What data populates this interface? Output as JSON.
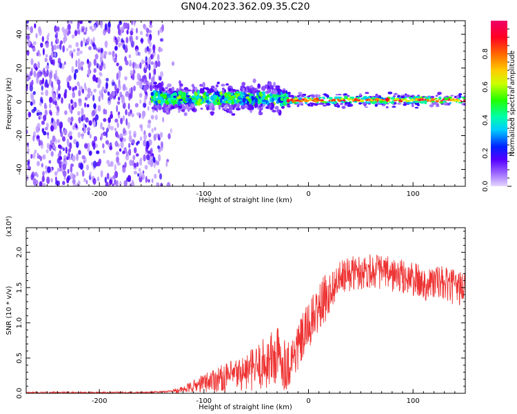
{
  "title": "GN04.2023.362.09.35.C20",
  "chart_data": [
    {
      "type": "heatmap",
      "xlabel": "Height of straight line (km)",
      "ylabel": "Frequency (Hz)",
      "xlim": [
        -270,
        150
      ],
      "ylim": [
        -50,
        48
      ],
      "xticks": [
        -200,
        -100,
        0,
        100
      ],
      "yticks": [
        40,
        20,
        0,
        -20,
        -40
      ],
      "colorbar": {
        "label": "Normalized spectral amplitude",
        "range": [
          0,
          1
        ],
        "ticks": [
          "0.0",
          "0.2",
          "0.4",
          "0.6",
          "0.8"
        ],
        "colormap": "hsv-rainbow"
      },
      "regions": [
        {
          "x_range": [
            -270,
            -140
          ],
          "description_values": {
            "freq_spread": [
              -50,
              48
            ],
            "amplitude": [
              0.05,
              0.2
            ]
          }
        },
        {
          "x_range": [
            -150,
            -20
          ],
          "description_values": {
            "freq_center": 2,
            "freq_halfwidth": 6,
            "amplitude": [
              0.2,
              0.6
            ]
          }
        },
        {
          "x_range": [
            -20,
            150
          ],
          "description_values": {
            "freq_center": 1,
            "freq_halfwidth": 3,
            "amplitude": [
              0.6,
              1.0
            ]
          }
        }
      ]
    },
    {
      "type": "line",
      "xlabel": "Height of straight line (km)",
      "ylabel": "SNR (10 * v/v)",
      "scale_label": "(x10⁴)",
      "xlim": [
        -270,
        150
      ],
      "ylim": [
        0,
        2.35
      ],
      "xticks": [
        -200,
        -100,
        0,
        100
      ],
      "yticks": [
        "0.0",
        "0.5",
        "1.0",
        "1.5",
        "2.0"
      ],
      "color": "#ee3333",
      "x": [
        -270,
        -240,
        -200,
        -160,
        -140,
        -120,
        -110,
        -100,
        -90,
        -80,
        -70,
        -60,
        -50,
        -40,
        -30,
        -20,
        -10,
        0,
        10,
        20,
        30,
        40,
        50,
        60,
        70,
        80,
        90,
        100,
        110,
        120,
        130,
        140,
        150
      ],
      "y": [
        0.01,
        0.01,
        0.01,
        0.01,
        0.02,
        0.05,
        0.1,
        0.15,
        0.2,
        0.22,
        0.26,
        0.3,
        0.36,
        0.44,
        0.52,
        0.4,
        0.65,
        0.95,
        1.2,
        1.45,
        1.62,
        1.7,
        1.72,
        1.75,
        1.72,
        1.68,
        1.65,
        1.62,
        1.55,
        1.58,
        1.55,
        1.5,
        1.5
      ]
    }
  ]
}
